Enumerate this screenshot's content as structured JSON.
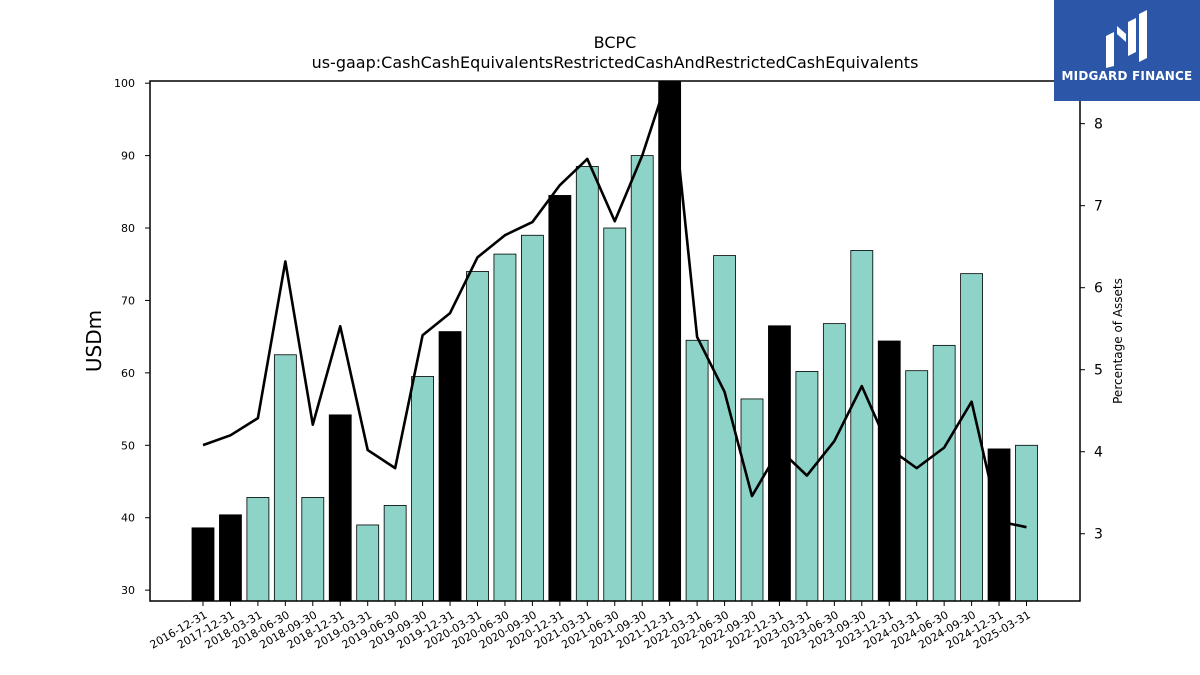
{
  "chart_data": {
    "type": "bar",
    "title": "BCPC",
    "subtitle": "us-gaap:CashCashEquivalentsRestrictedCashAndRestrictedCashEquivalents",
    "ylabel": "USDm",
    "ylabel_right": "Percentage of Assets",
    "ylim": [
      28.5,
      100.3
    ],
    "ylim_right": [
      2.18,
      8.52
    ],
    "yticks": [
      30,
      40,
      50,
      60,
      70,
      80,
      90,
      100
    ],
    "yticks_right": [
      3,
      4,
      5,
      6,
      7,
      8
    ],
    "categories": [
      "2016-12-31",
      "2017-12-31",
      "2018-03-31",
      "2018-06-30",
      "2018-09-30",
      "2018-12-31",
      "2019-03-31",
      "2019-06-30",
      "2019-09-30",
      "2019-12-31",
      "2020-03-31",
      "2020-06-30",
      "2020-09-30",
      "2020-12-31",
      "2021-03-31",
      "2021-06-30",
      "2021-09-30",
      "2021-12-31",
      "2022-03-31",
      "2022-06-30",
      "2022-09-30",
      "2022-12-31",
      "2023-03-31",
      "2023-06-30",
      "2023-09-30",
      "2023-12-31",
      "2024-03-31",
      "2024-06-30",
      "2024-09-30",
      "2024-12-31",
      "2025-03-31"
    ],
    "series": [
      {
        "type": "bar",
        "values": [
          38.6,
          40.4,
          42.8,
          62.5,
          42.8,
          54.2,
          39.0,
          41.7,
          59.5,
          65.7,
          74.0,
          76.4,
          79.0,
          84.5,
          88.5,
          80.0,
          90.0,
          100.3,
          64.5,
          76.2,
          56.4,
          66.5,
          60.2,
          66.8,
          76.9,
          64.4,
          60.3,
          63.8,
          73.7,
          49.5,
          50.0
        ],
        "highlight": [
          true,
          true,
          false,
          false,
          false,
          true,
          false,
          false,
          false,
          true,
          false,
          false,
          false,
          true,
          false,
          false,
          false,
          true,
          false,
          false,
          false,
          true,
          false,
          false,
          false,
          true,
          false,
          false,
          false,
          true,
          false
        ]
      },
      {
        "type": "line",
        "axis": "right",
        "values": [
          4.08,
          4.2,
          4.41,
          6.32,
          4.33,
          5.53,
          4.02,
          3.8,
          5.42,
          5.69,
          6.37,
          6.64,
          6.8,
          7.25,
          7.57,
          6.81,
          7.61,
          8.63,
          5.4,
          4.73,
          3.46,
          4.03,
          3.71,
          4.13,
          4.8,
          4.04,
          3.8,
          4.05,
          4.61,
          3.15,
          3.08
        ]
      }
    ],
    "colors": {
      "bar": "#8dd3c7",
      "bar_highlight": "#000000",
      "line": "#000000",
      "edge": "#000000"
    }
  },
  "logo": {
    "text": "MIDGARD FINANCE",
    "background": "#2c57a8"
  }
}
